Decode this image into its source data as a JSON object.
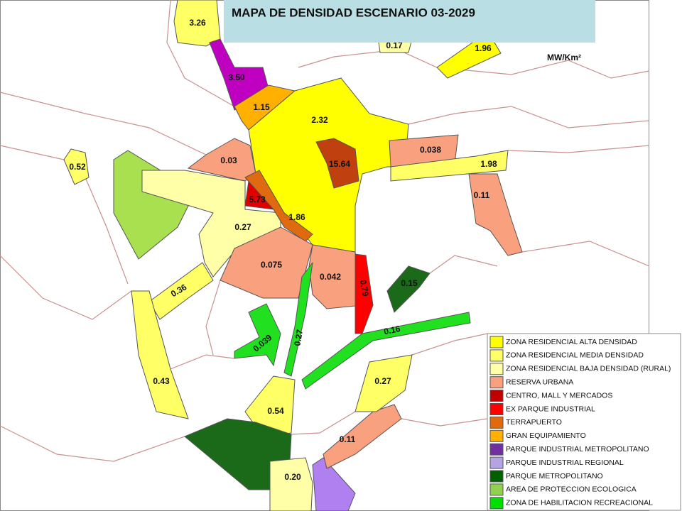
{
  "title": "MAPA DE DENSIDAD ESCENARIO 03-2029",
  "unit": "MW/Km²",
  "zones": [
    {
      "label": "3.26"
    },
    {
      "label": "3.50"
    },
    {
      "label": "1.15"
    },
    {
      "label": "2.32"
    },
    {
      "label": "15.64"
    },
    {
      "label": "0.038"
    },
    {
      "label": "1.98"
    },
    {
      "label": "0.11"
    },
    {
      "label": "0.52"
    },
    {
      "label": "0.03"
    },
    {
      "label": "5.73"
    },
    {
      "label": "1.86"
    },
    {
      "label": "0.27"
    },
    {
      "label": "0.36"
    },
    {
      "label": "0.075"
    },
    {
      "label": "0.042"
    },
    {
      "label": "0.79"
    },
    {
      "label": "0.15"
    },
    {
      "label": "0.16"
    },
    {
      "label": "0.039"
    },
    {
      "label": "0.27"
    },
    {
      "label": "0.43"
    },
    {
      "label": "0.54"
    },
    {
      "label": "0.20"
    },
    {
      "label": "0.11"
    },
    {
      "label": "0.27"
    },
    {
      "label": "1.96"
    },
    {
      "label": "0.17"
    }
  ],
  "legend": {
    "items": [
      {
        "label": "ZONA RESIDENCIAL ALTA DENSIDAD",
        "color": "#ffff00"
      },
      {
        "label": "ZONA RESIDENCIAL MEDIA DENSIDAD",
        "color": "#ffff66"
      },
      {
        "label": "ZONA RESIDENCIAL BAJA DENSIDAD (RURAL)",
        "color": "#ffffa8"
      },
      {
        "label": "RESERVA URBANA",
        "color": "#f9a07e"
      },
      {
        "label": "CENTRO, MALL Y MERCADOS",
        "color": "#c00000"
      },
      {
        "label": "EX PARQUE INDUSTRIAL",
        "color": "#ff0000"
      },
      {
        "label": "TERRAPUERTO",
        "color": "#e06a10"
      },
      {
        "label": "GRAN EQUIPAMIENTO",
        "color": "#ffb000"
      },
      {
        "label": "PARQUE INDUSTRIAL METROPOLITANO",
        "color": "#7030a0"
      },
      {
        "label": "PARQUE INDUSTRIAL REGIONAL",
        "color": "#b4a4e4"
      },
      {
        "label": "PARQUE METROPOLITANO",
        "color": "#006000"
      },
      {
        "label": "AREA DE PROTECCION ECOLOGICA",
        "color": "#92d050"
      },
      {
        "label": "ZONA DE HABILITACION RECREACIONAL",
        "color": "#00e000"
      }
    ]
  }
}
